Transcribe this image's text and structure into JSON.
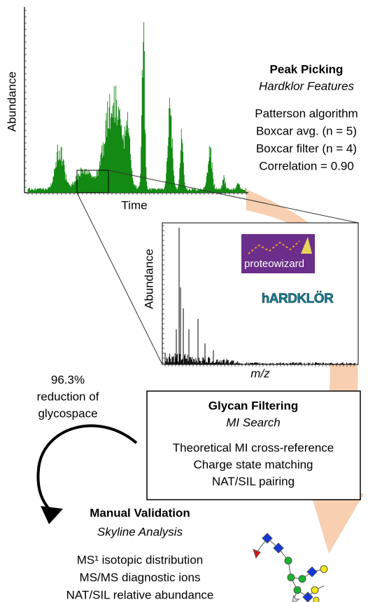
{
  "chromatogram": {
    "y_label": "Abundance",
    "x_label": "Time"
  },
  "peak_picking": {
    "title": "Peak Picking",
    "subtitle": "Hardklor Features",
    "lines": [
      "Patterson algorithm",
      "Boxcar avg. (n = 5)",
      "Boxcar filter (n = 4)",
      "Correlation = 0.90"
    ]
  },
  "spectrum": {
    "y_label": "Abundance",
    "x_label": "m/z"
  },
  "logos": [
    "proteowizard",
    "hARDKLÖR"
  ],
  "reduction": [
    "96.3%",
    "reduction of",
    "glycospace"
  ],
  "glycan_filtering": {
    "title": "Glycan Filtering",
    "subtitle": "MI Search",
    "lines": [
      "Theoretical MI cross-reference",
      "Charge state matching",
      "NAT/SIL pairing"
    ]
  },
  "manual_validation": {
    "title": "Manual Validation",
    "subtitle": "Skyline Analysis",
    "lines": [
      "MS¹ isotopic distribution",
      "MS/MS diagnostic ions",
      "NAT/SIL relative abundance"
    ]
  }
}
